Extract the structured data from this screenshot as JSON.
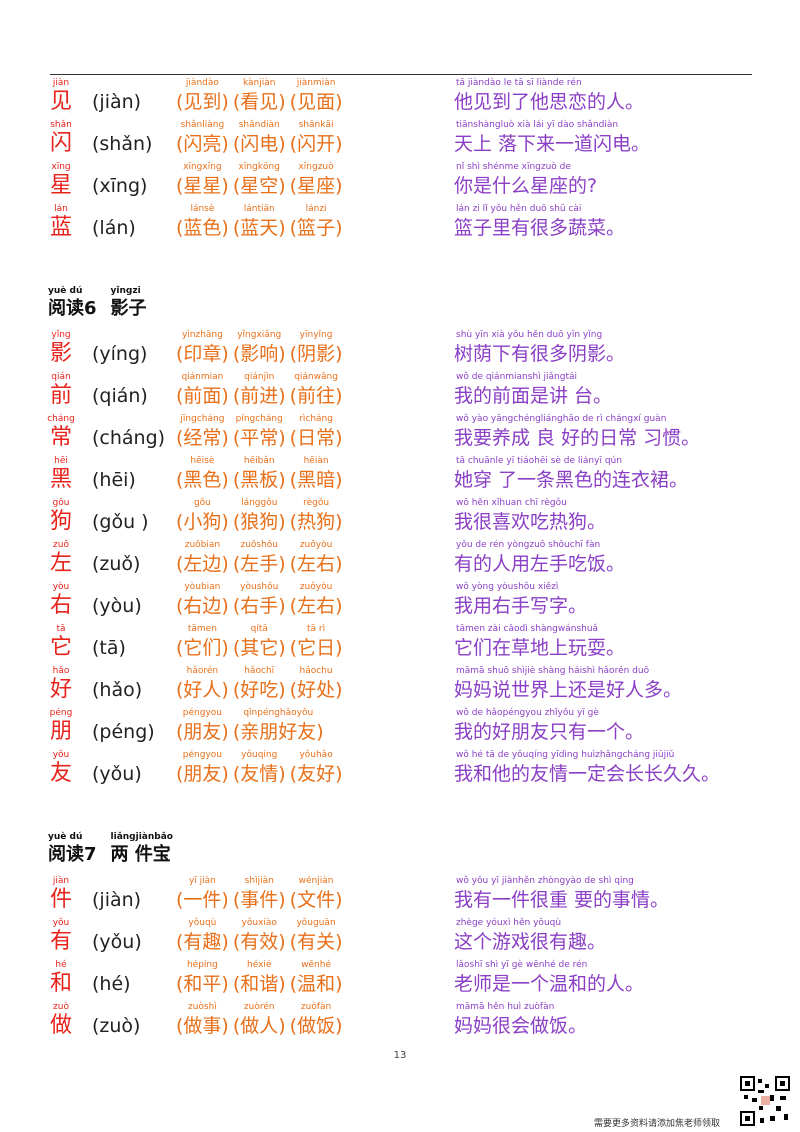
{
  "sections": [
    {
      "rows": [
        {
          "pinyin": "jiàn",
          "char": "见",
          "reading": "(jiàn)",
          "words": [
            {
              "pinyin": "jiàndào",
              "text": "(见到)"
            },
            {
              "pinyin": "kànjiàn",
              "text": "(看见)"
            },
            {
              "pinyin": "jiànmiàn",
              "text": "(见面)"
            }
          ],
          "sentence": {
            "pinyin": "tā jiàndào le tā sī liànde rén",
            "text": "他见到了他思恋的人。"
          }
        },
        {
          "pinyin": "shǎn",
          "char": "闪",
          "reading": "(shǎn)",
          "words": [
            {
              "pinyin": "shǎnliàng",
              "text": "(闪亮)"
            },
            {
              "pinyin": "shǎndiàn",
              "text": "(闪电)"
            },
            {
              "pinyin": "shǎnkāi",
              "text": "(闪开)"
            }
          ],
          "sentence": {
            "pinyin": "tiānshàngluò xià lái yī dào shǎndiàn",
            "text": "天上 落下来一道闪电。"
          }
        },
        {
          "pinyin": "xīng",
          "char": "星",
          "reading": "(xīng)",
          "words": [
            {
              "pinyin": "xīngxīng",
              "text": "(星星)"
            },
            {
              "pinyin": "xīngkōng",
              "text": "(星空)"
            },
            {
              "pinyin": "xīngzuò",
              "text": "(星座)"
            }
          ],
          "sentence": {
            "pinyin": "nǐ shì shénme xīngzuò de",
            "text": "你是什么星座的?"
          }
        },
        {
          "pinyin": "lán",
          "char": "蓝",
          "reading": "(lán)",
          "words": [
            {
              "pinyin": "lánsè",
              "text": "(蓝色)"
            },
            {
              "pinyin": "lántiān",
              "text": "(蓝天)"
            },
            {
              "pinyin": "lánzi",
              "text": "(篮子)"
            }
          ],
          "sentence": {
            "pinyin": "lán zi lǐ yǒu hěn duō shū cài",
            "text": "篮子里有很多蔬菜。"
          }
        }
      ]
    },
    {
      "heading": {
        "label_pinyin": "yuè dú",
        "label": "阅读6",
        "title_pinyin": "yǐngzi",
        "title": "影子"
      },
      "rows": [
        {
          "pinyin": "yǐng",
          "char": "影",
          "reading": "(yíng)",
          "words": [
            {
              "pinyin": "yìnzhāng",
              "text": "(印章)"
            },
            {
              "pinyin": "yǐngxiǎng",
              "text": "(影响)"
            },
            {
              "pinyin": "yīnyǐng",
              "text": "(阴影)"
            }
          ],
          "sentence": {
            "pinyin": "shù yīn xià yǒu hěn duō yīn yǐng",
            "text": "树荫下有很多阴影。"
          }
        },
        {
          "pinyin": "qián",
          "char": "前",
          "reading": "(qián)",
          "words": [
            {
              "pinyin": "qiánmian",
              "text": "(前面)"
            },
            {
              "pinyin": "qiánjìn",
              "text": "(前进)"
            },
            {
              "pinyin": "qiánwǎng",
              "text": "(前往)"
            }
          ],
          "sentence": {
            "pinyin": "wǒ de qiánmianshì jiǎngtái",
            "text": "我的前面是讲 台。"
          }
        },
        {
          "pinyin": "cháng",
          "char": "常",
          "reading": "(cháng)",
          "words": [
            {
              "pinyin": "jīngcháng",
              "text": "(经常)"
            },
            {
              "pinyin": "píngcháng",
              "text": "(平常)"
            },
            {
              "pinyin": "rìcháng",
              "text": "(日常)"
            }
          ],
          "sentence": {
            "pinyin": "wǒ yào yǎngchéngliánghǎo de rì chángxí guàn",
            "text": "我要养成 良 好的日常 习惯。"
          }
        },
        {
          "pinyin": "hēi",
          "char": "黑",
          "reading": "(hēi)",
          "words": [
            {
              "pinyin": "hēisè",
              "text": "(黑色)"
            },
            {
              "pinyin": "hēibǎn",
              "text": "(黑板)"
            },
            {
              "pinyin": "hēiàn",
              "text": "(黑暗)"
            }
          ],
          "sentence": {
            "pinyin": "tā chuānle yī tiáohēi sè de liányī qún",
            "text": "她穿 了一条黑色的连衣裙。"
          }
        },
        {
          "pinyin": "gǒu",
          "char": "狗",
          "reading": "(gǒu )",
          "words": [
            {
              "pinyin": "gǒu",
              "text": "(小狗)"
            },
            {
              "pinyin": "lánggǒu",
              "text": "(狼狗)"
            },
            {
              "pinyin": "règǒu",
              "text": "(热狗)"
            }
          ],
          "sentence": {
            "pinyin": "wǒ hěn xǐhuan chī règǒu",
            "text": "我很喜欢吃热狗。"
          }
        },
        {
          "pinyin": "zuǒ",
          "char": "左",
          "reading": "(zuǒ)",
          "words": [
            {
              "pinyin": "zuǒbian",
              "text": "(左边)"
            },
            {
              "pinyin": "zuǒshǒu",
              "text": "(左手)"
            },
            {
              "pinyin": "zuǒyòu",
              "text": "(左右)"
            }
          ],
          "sentence": {
            "pinyin": "yǒu de rén yòngzuǒ shǒuchī fàn",
            "text": "有的人用左手吃饭。"
          }
        },
        {
          "pinyin": "yòu",
          "char": "右",
          "reading": "(yòu)",
          "words": [
            {
              "pinyin": "yòubian",
              "text": "(右边)"
            },
            {
              "pinyin": "yòushǒu",
              "text": "(右手)"
            },
            {
              "pinyin": "zuǒyòu",
              "text": "(左右)"
            }
          ],
          "sentence": {
            "pinyin": "wǒ yòng yòushǒu xiězì",
            "text": "我用右手写字。"
          }
        },
        {
          "pinyin": "tā",
          "char": "它",
          "reading": "(tā)",
          "words": [
            {
              "pinyin": "tāmen",
              "text": "(它们)"
            },
            {
              "pinyin": "qítā",
              "text": "(其它)"
            },
            {
              "pinyin": "tā rì",
              "text": "(它日)"
            }
          ],
          "sentence": {
            "pinyin": "tāmen zài cǎodì shàngwánshuǎ",
            "text": "它们在草地上玩耍。"
          }
        },
        {
          "pinyin": "hǎo",
          "char": "好",
          "reading": "(hǎo)",
          "words": [
            {
              "pinyin": "hǎorén",
              "text": "(好人)"
            },
            {
              "pinyin": "hǎochī",
              "text": "(好吃)"
            },
            {
              "pinyin": "hǎochu",
              "text": "(好处)"
            }
          ],
          "sentence": {
            "pinyin": "māmā shuō shìjiè shàng háishì hǎorén duō",
            "text": "妈妈说世界上还是好人多。"
          }
        },
        {
          "pinyin": "péng",
          "char": "朋",
          "reading": "(péng)",
          "words": [
            {
              "pinyin": "péngyou",
              "text": "(朋友)"
            },
            {
              "pinyin": "qīnpénghǎoyǒu",
              "text": "(亲朋好友)"
            }
          ],
          "sentence": {
            "pinyin": "wǒ de hǎopéngyou zhǐyǒu yī gè",
            "text": "我的好朋友只有一个。"
          }
        },
        {
          "pinyin": "yǒu",
          "char": "友",
          "reading": "(yǒu)",
          "words": [
            {
              "pinyin": "péngyou",
              "text": "(朋友)"
            },
            {
              "pinyin": "yǒuqing",
              "text": "(友情)"
            },
            {
              "pinyin": "yǒuhǎo",
              "text": "(友好)"
            }
          ],
          "sentence": {
            "pinyin": "wǒ hé tā de yǒuqíng yīdìng huìzhǎngcháng jiǔjiǔ",
            "text": "我和他的友情一定会长长久久。"
          }
        }
      ]
    },
    {
      "heading": {
        "label_pinyin": "yuè dú",
        "label": "阅读7",
        "title_pinyin": "liǎngjiànbǎo",
        "title": "两 件宝"
      },
      "rows": [
        {
          "pinyin": "jiàn",
          "char": "件",
          "reading": "(jiàn)",
          "words": [
            {
              "pinyin": "yī jiàn",
              "text": "(一件)"
            },
            {
              "pinyin": "shìjiàn",
              "text": "(事件)"
            },
            {
              "pinyin": "wénjiàn",
              "text": "(文件)"
            }
          ],
          "sentence": {
            "pinyin": "wǒ yǒu yī jiànhěn zhòngyào de shì qing",
            "text": "我有一件很重 要的事情。"
          }
        },
        {
          "pinyin": "yǒu",
          "char": "有",
          "reading": "(yǒu)",
          "words": [
            {
              "pinyin": "yǒuqù",
              "text": "(有趣)"
            },
            {
              "pinyin": "yǒuxiào",
              "text": "(有效)"
            },
            {
              "pinyin": "yǒuguān",
              "text": "(有关)"
            }
          ],
          "sentence": {
            "pinyin": "zhège yóuxì hěn yǒuqù",
            "text": "这个游戏很有趣。"
          }
        },
        {
          "pinyin": "hé",
          "char": "和",
          "reading": "(hé)",
          "words": [
            {
              "pinyin": "hépíng",
              "text": "(和平)"
            },
            {
              "pinyin": "héxié",
              "text": "(和谐)"
            },
            {
              "pinyin": "wēnhé",
              "text": "(温和)"
            }
          ],
          "sentence": {
            "pinyin": "lǎoshī shì yī gè wēnhé de rén",
            "text": "老师是一个温和的人。"
          }
        },
        {
          "pinyin": "zuò",
          "char": "做",
          "reading": "(zuò)",
          "words": [
            {
              "pinyin": "zuòshì",
              "text": "(做事)"
            },
            {
              "pinyin": "zuòrén",
              "text": "(做人)"
            },
            {
              "pinyin": "zuòfàn",
              "text": "(做饭)"
            }
          ],
          "sentence": {
            "pinyin": "māmā hěn huì zuòfàn",
            "text": "妈妈很会做饭。"
          }
        }
      ]
    }
  ],
  "page_number": "13",
  "footer": "需要更多资料请添加焦老师领取"
}
